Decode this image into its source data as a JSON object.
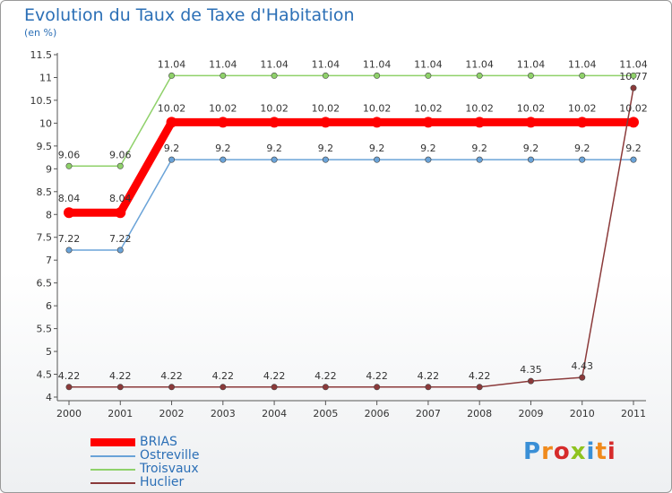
{
  "header": {
    "title": "Evolution du Taux de Taxe d'Habitation",
    "subtitle": "(en %)"
  },
  "logo": {
    "text": "Proxiti",
    "colors": [
      "#3a8fd6",
      "#f08a1c",
      "#d62b2b",
      "#8fc31f"
    ]
  },
  "chart_data": {
    "type": "line",
    "x": [
      2000,
      2001,
      2002,
      2003,
      2004,
      2005,
      2006,
      2007,
      2008,
      2009,
      2010,
      2011
    ],
    "ylim": [
      4,
      11.5
    ],
    "yticks": [
      4,
      4.5,
      5,
      5.5,
      6,
      6.5,
      7,
      7.5,
      8,
      8.5,
      9,
      9.5,
      10,
      10.5,
      11,
      11.5
    ],
    "ytick_labels": [
      "4",
      "4.5",
      "5",
      "5.5",
      "6",
      "6.5",
      "7",
      "7.5",
      "8",
      "8.5",
      "9",
      "9.5",
      "10",
      "10.5",
      "11",
      "11.5"
    ],
    "grid": false,
    "legend": "bottom-left",
    "series": [
      {
        "name": "Troisvaux",
        "color": "#8fd16a",
        "values": [
          9.06,
          9.06,
          11.04,
          11.04,
          11.04,
          11.04,
          11.04,
          11.04,
          11.04,
          11.04,
          11.04,
          11.04
        ],
        "labels": [
          "9.06",
          "9.06",
          "11.04",
          "11.04",
          "11.04",
          "11.04",
          "11.04",
          "11.04",
          "11.04",
          "11.04",
          "11.04",
          "11.04"
        ]
      },
      {
        "name": "BRIAS",
        "color": "#ff0000",
        "values": [
          8.04,
          8.04,
          10.02,
          10.02,
          10.02,
          10.02,
          10.02,
          10.02,
          10.02,
          10.02,
          10.02,
          10.02
        ],
        "labels": [
          "8.04",
          "8.04",
          "10.02",
          "10.02",
          "10.02",
          "10.02",
          "10.02",
          "10.02",
          "10.02",
          "10.02",
          "10.02",
          "10.02"
        ]
      },
      {
        "name": "Ostreville",
        "color": "#6aa3d8",
        "values": [
          7.22,
          7.22,
          9.2,
          9.2,
          9.2,
          9.2,
          9.2,
          9.2,
          9.2,
          9.2,
          9.2,
          9.2
        ],
        "labels": [
          "7.22",
          "7.22",
          "9.2",
          "9.2",
          "9.2",
          "9.2",
          "9.2",
          "9.2",
          "9.2",
          "9.2",
          "9.2",
          "9.2"
        ]
      },
      {
        "name": "Huclier",
        "color": "#8b3a3a",
        "values": [
          4.22,
          4.22,
          4.22,
          4.22,
          4.22,
          4.22,
          4.22,
          4.22,
          4.22,
          4.35,
          4.43,
          10.77
        ],
        "labels": [
          "4.22",
          "4.22",
          "4.22",
          "4.22",
          "4.22",
          "4.22",
          "4.22",
          "4.22",
          "4.22",
          "4.35",
          "4.43",
          "10.77"
        ]
      }
    ],
    "legend_order": [
      "BRIAS",
      "Ostreville",
      "Troisvaux",
      "Huclier"
    ]
  }
}
